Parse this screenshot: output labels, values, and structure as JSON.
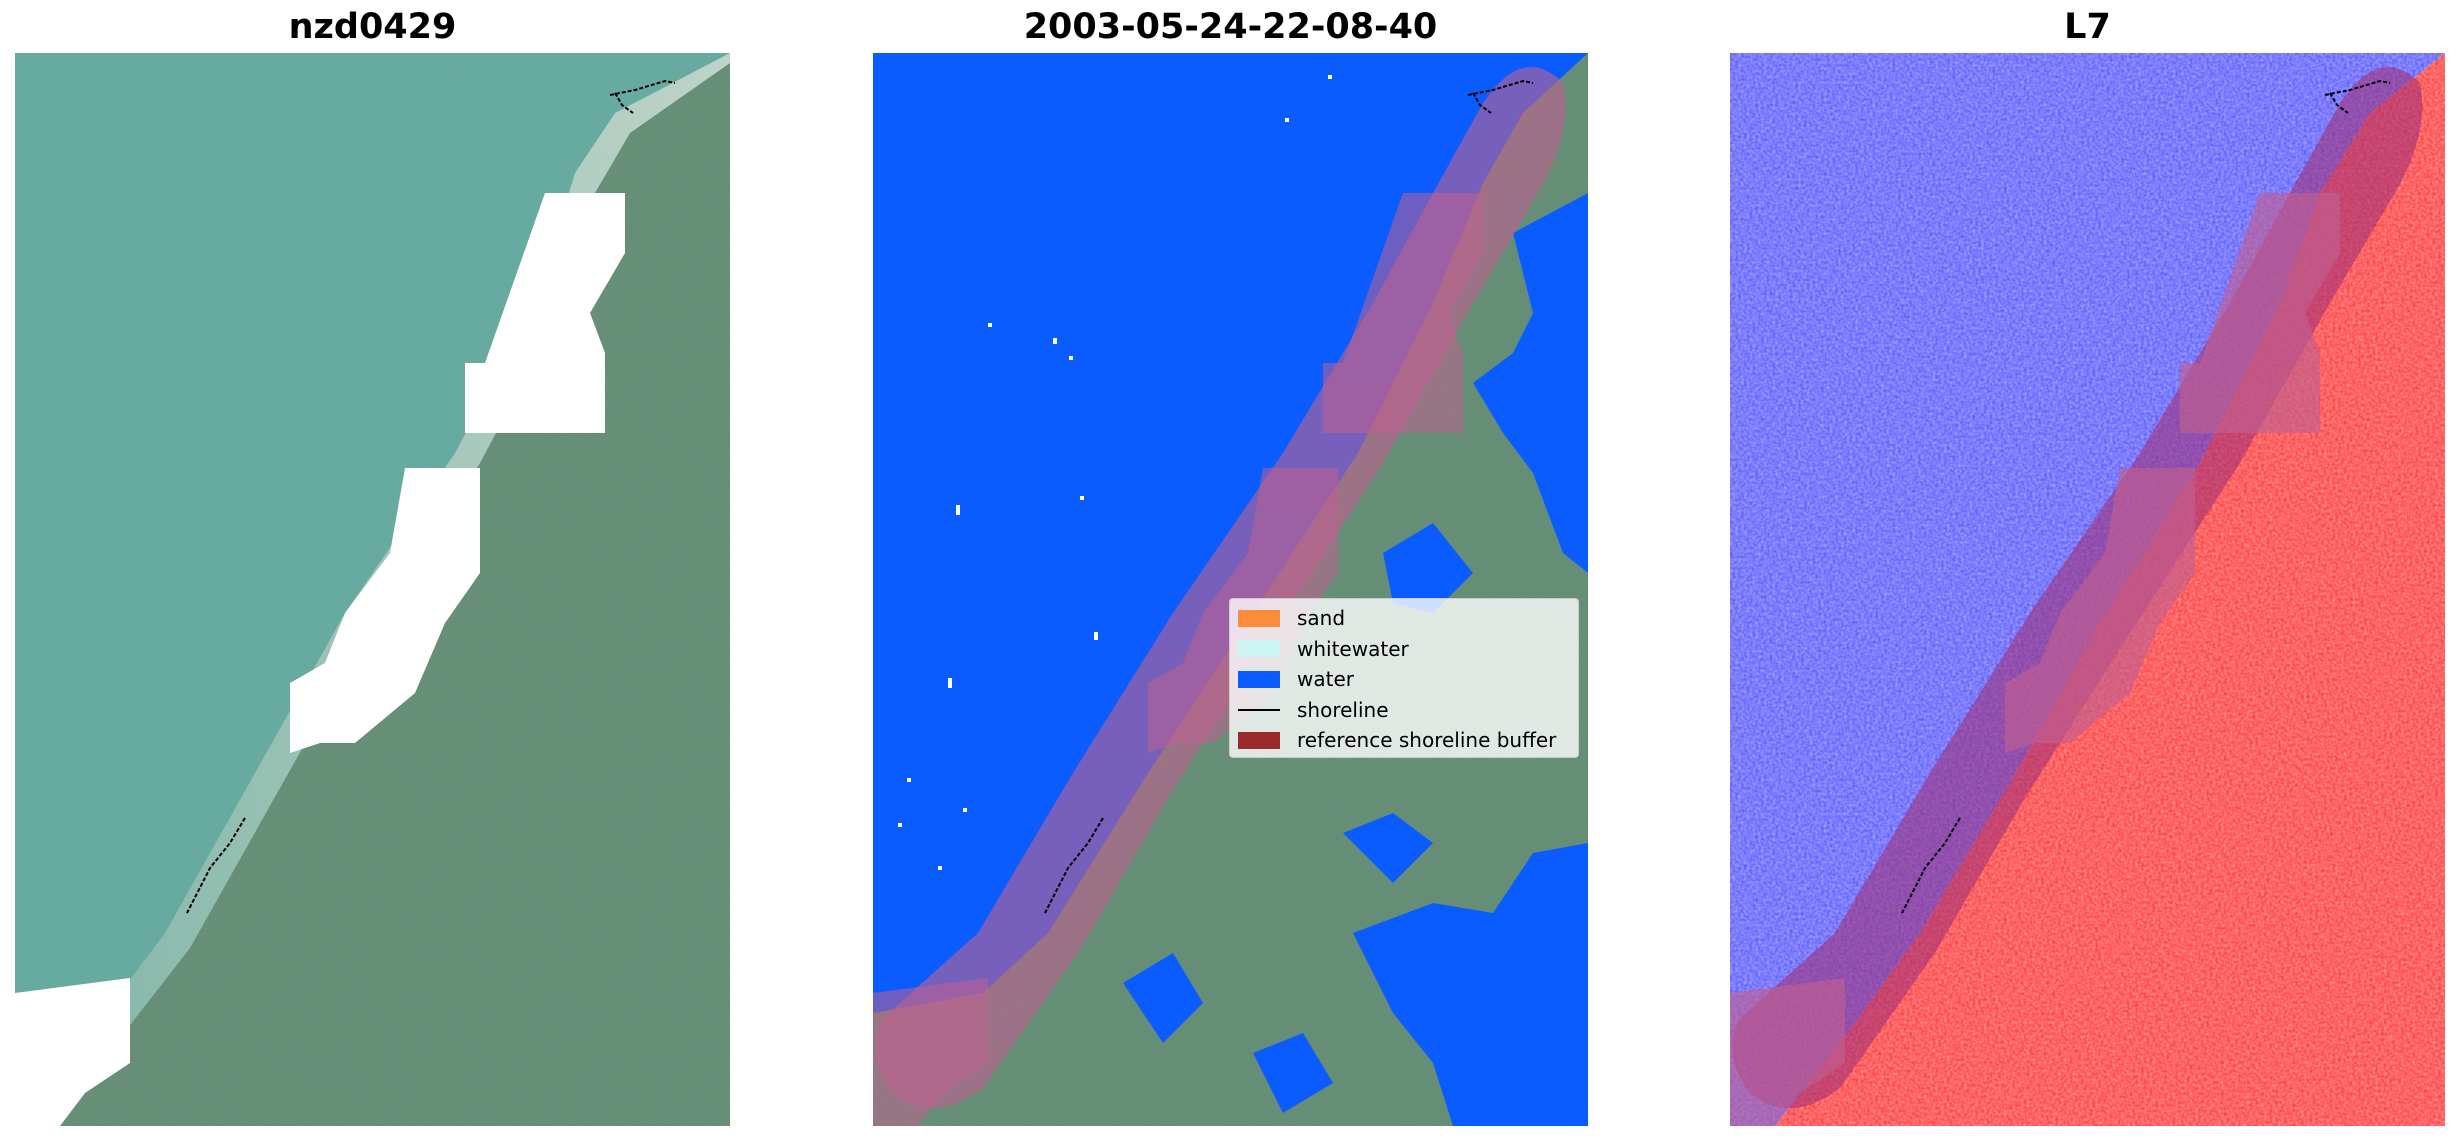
{
  "panels": [
    {
      "title": "nzd0429",
      "kind": "rgb"
    },
    {
      "title": "2003-05-24-22-08-40",
      "kind": "classified"
    },
    {
      "title": "L7",
      "kind": "mndwi"
    }
  ],
  "legend": {
    "items": [
      {
        "label": "sand",
        "color": "#ff8c3a",
        "type": "patch"
      },
      {
        "label": "whitewater",
        "color": "#ccf5f2",
        "type": "patch"
      },
      {
        "label": "water",
        "color": "#0b5cff",
        "type": "patch"
      },
      {
        "label": "shoreline",
        "color": "#000000",
        "type": "line"
      },
      {
        "label": "reference shoreline buffer",
        "color": "#9b2b2b",
        "type": "patch"
      }
    ]
  },
  "colors": {
    "ocean": "#5fa89d",
    "land": "#5f8a72",
    "water_class": "#0b5cff",
    "buffer": "#c06090",
    "index_water": "#4b4bff",
    "index_land": "#ff2a2a",
    "cloud_mask": "#ffffff"
  }
}
